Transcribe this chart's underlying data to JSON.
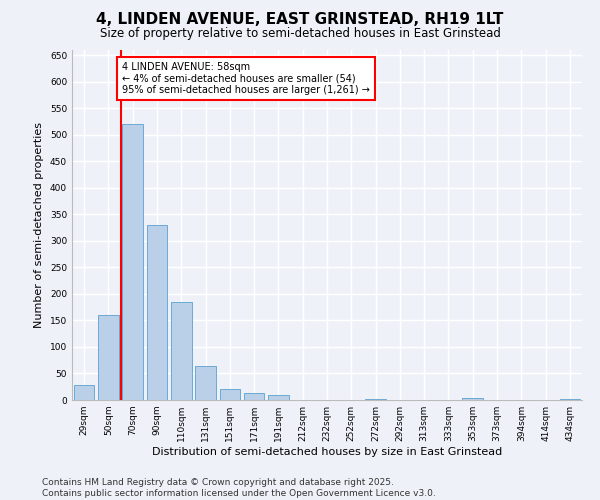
{
  "title1": "4, LINDEN AVENUE, EAST GRINSTEAD, RH19 1LT",
  "title2": "Size of property relative to semi-detached houses in East Grinstead",
  "xlabel": "Distribution of semi-detached houses by size in East Grinstead",
  "ylabel": "Number of semi-detached properties",
  "categories": [
    "29sqm",
    "50sqm",
    "70sqm",
    "90sqm",
    "110sqm",
    "131sqm",
    "151sqm",
    "171sqm",
    "191sqm",
    "212sqm",
    "232sqm",
    "252sqm",
    "272sqm",
    "292sqm",
    "313sqm",
    "333sqm",
    "353sqm",
    "373sqm",
    "394sqm",
    "414sqm",
    "434sqm"
  ],
  "values": [
    28,
    160,
    520,
    330,
    185,
    65,
    20,
    13,
    10,
    0,
    0,
    0,
    2,
    0,
    0,
    0,
    3,
    0,
    0,
    0,
    2
  ],
  "bar_color": "#bad0e8",
  "bar_edge_color": "#6aaad4",
  "vline_color": "red",
  "vline_x": 1.5,
  "annotation_text": "4 LINDEN AVENUE: 58sqm\n← 4% of semi-detached houses are smaller (54)\n95% of semi-detached houses are larger (1,261) →",
  "annotation_box_color": "#ffffff",
  "annotation_box_edge": "red",
  "ylim": [
    0,
    660
  ],
  "yticks": [
    0,
    50,
    100,
    150,
    200,
    250,
    300,
    350,
    400,
    450,
    500,
    550,
    600,
    650
  ],
  "footer": "Contains HM Land Registry data © Crown copyright and database right 2025.\nContains public sector information licensed under the Open Government Licence v3.0.",
  "bg_color": "#eef2f8",
  "grid_color": "#ffffff",
  "title1_fontsize": 11,
  "title2_fontsize": 8.5,
  "tick_fontsize": 6.5,
  "label_fontsize": 8,
  "footer_fontsize": 6.5
}
